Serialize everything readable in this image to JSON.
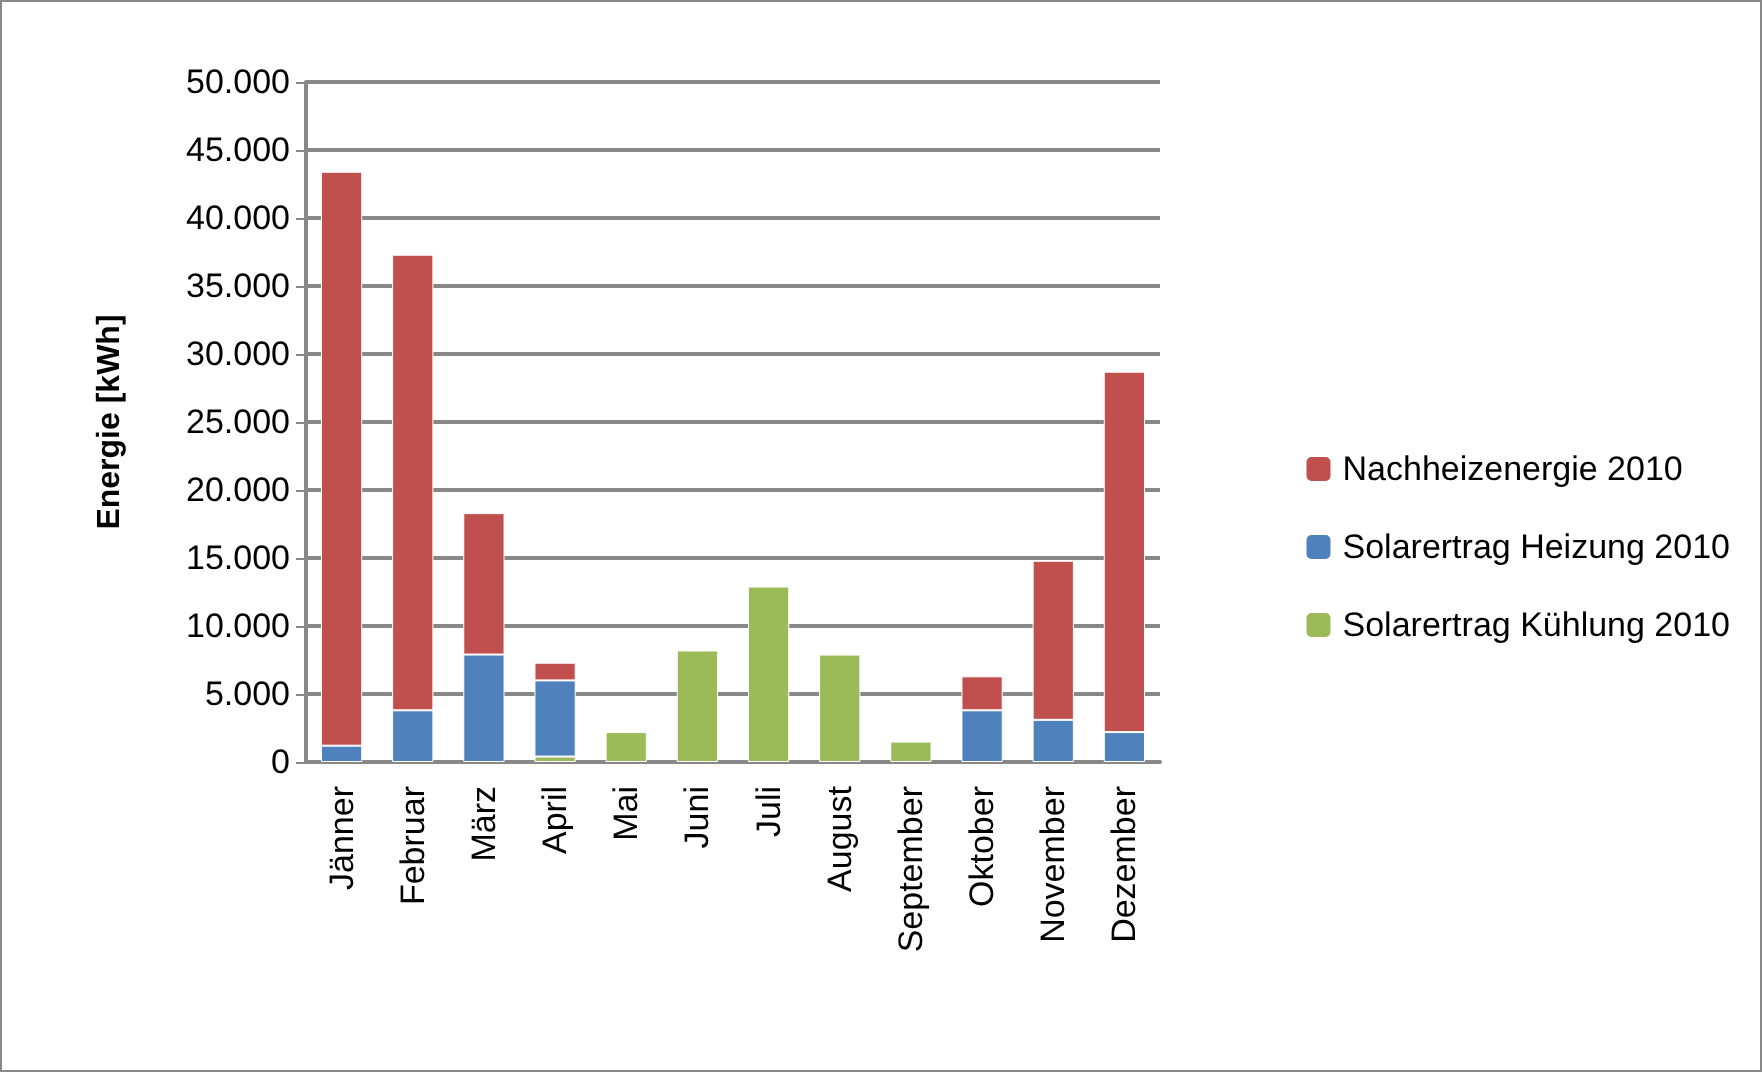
{
  "chart_data": {
    "type": "bar",
    "stacked": true,
    "ylabel": "Energie [kWh]",
    "categories": [
      "Jänner",
      "Februar",
      "März",
      "April",
      "Mai",
      "Juni",
      "Juli",
      "August",
      "September",
      "Oktober",
      "November",
      "Dezember"
    ],
    "series": [
      {
        "name": "Solarertrag Kühlung 2010",
        "color": "#9bbb59",
        "values": [
          null,
          null,
          null,
          400,
          2200,
          8200,
          12900,
          7900,
          1500,
          null,
          null,
          null
        ]
      },
      {
        "name": "Solarertrag Heizung 2010",
        "color": "#4f81bd",
        "values": [
          1200,
          3800,
          7900,
          5600,
          null,
          null,
          null,
          null,
          null,
          3800,
          3100,
          2200
        ]
      },
      {
        "name": "Nachheizenergie 2010",
        "color": "#c0504d",
        "values": [
          42200,
          33500,
          10400,
          1300,
          null,
          null,
          null,
          null,
          null,
          2500,
          11700,
          26500
        ]
      }
    ],
    "ylim": [
      0,
      50000
    ],
    "yticks": [
      0,
      {
        "value": 5000,
        "label": "5.000"
      },
      {
        "value": 10000,
        "label": "10.000"
      },
      {
        "value": 15000,
        "label": "15.000"
      },
      {
        "value": 20000,
        "label": "20.000"
      },
      {
        "value": 25000,
        "label": "25.000"
      },
      {
        "value": 30000,
        "label": "30.000"
      },
      {
        "value": 35000,
        "label": "35.000"
      },
      {
        "value": 40000,
        "label": "40.000"
      },
      {
        "value": 45000,
        "label": "45.000"
      },
      {
        "value": 50000,
        "label": "50.000"
      }
    ],
    "grid": "y",
    "legend": "right"
  }
}
